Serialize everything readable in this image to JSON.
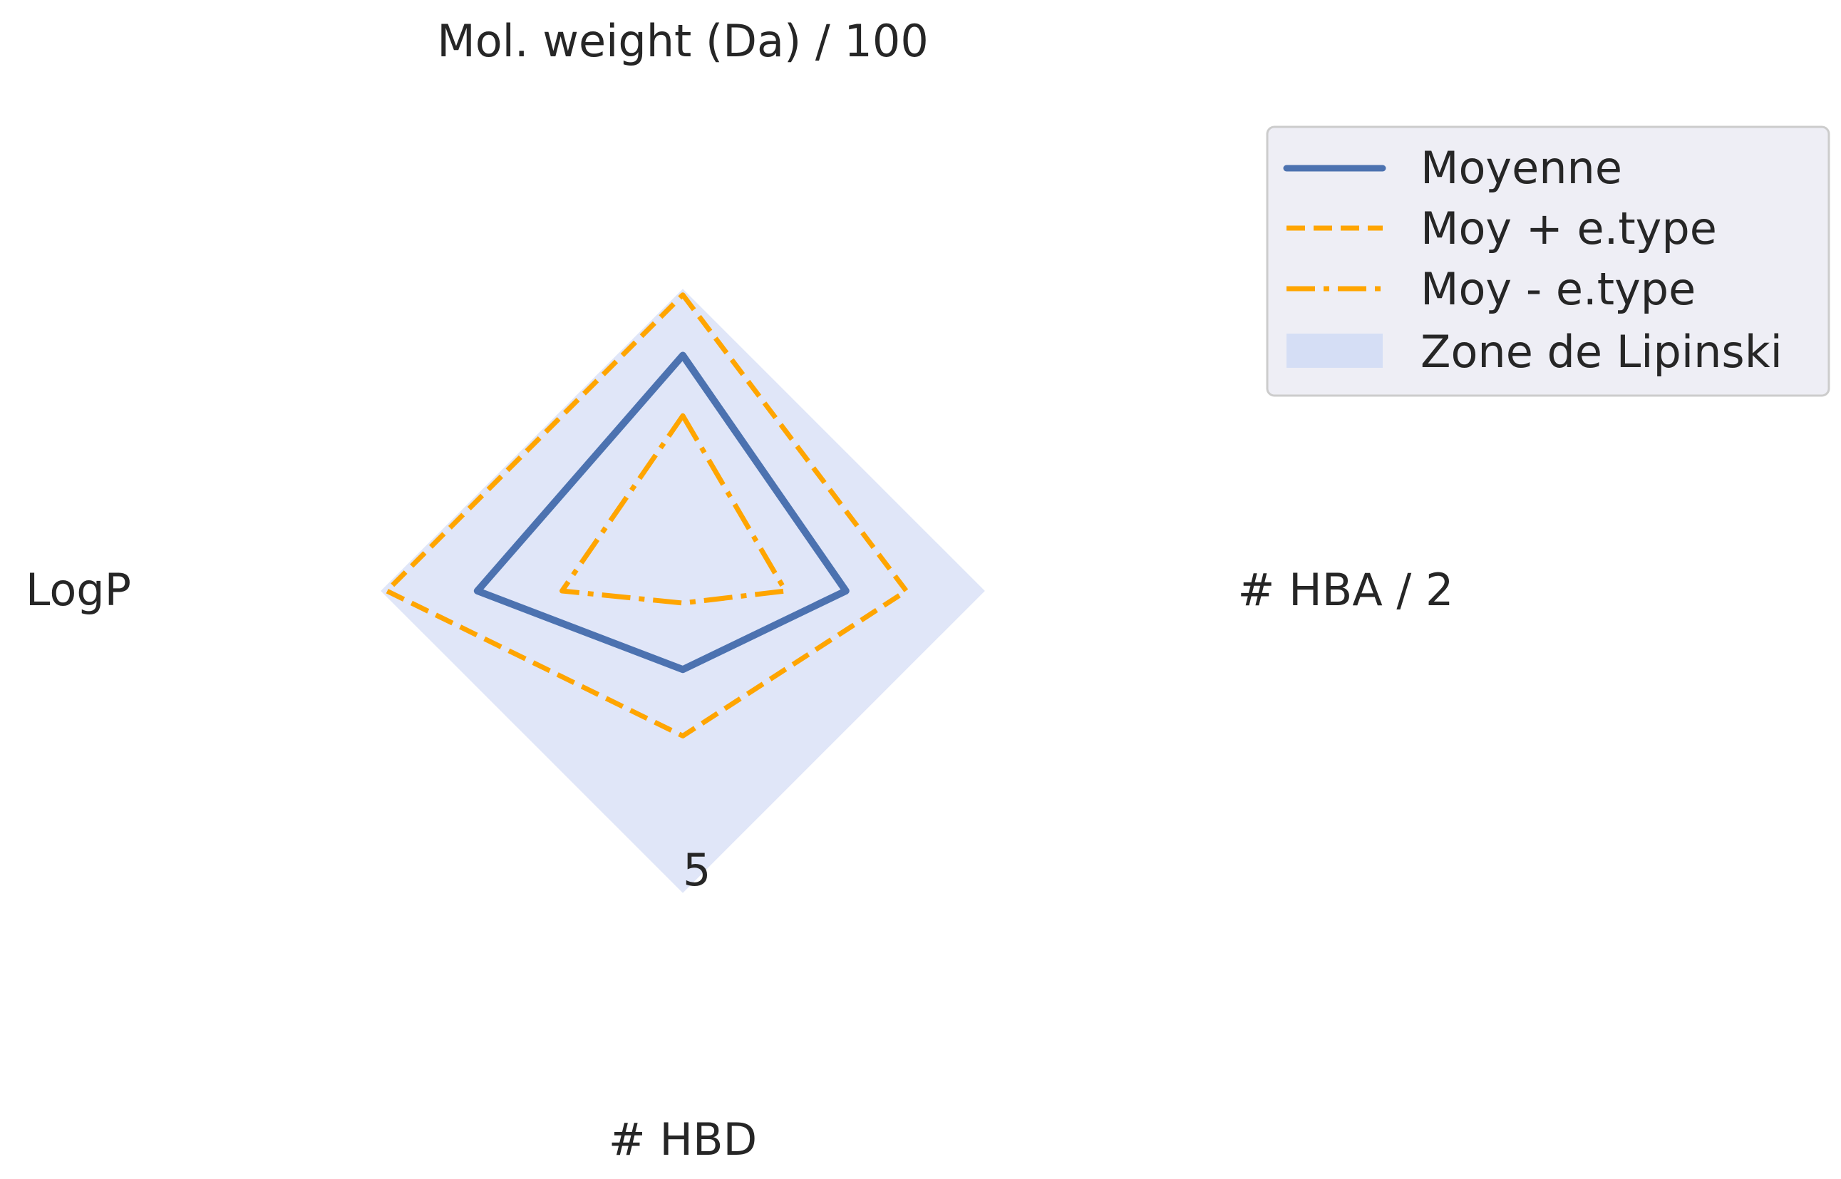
{
  "chart_data": {
    "type": "radar",
    "axes": [
      "Mol. weight (Da) / 100",
      "# HBA / 2",
      "# HBD",
      "LogP"
    ],
    "radial_max": 6.1,
    "radial_ticks": [
      5
    ],
    "radial_tick_labels": [
      "5"
    ],
    "grid": false,
    "legend_position": "top-right",
    "series": [
      {
        "name": "Moyenne",
        "values": [
          3.9,
          2.7,
          1.3,
          3.4
        ],
        "color": "#4c72b0",
        "style": "solid"
      },
      {
        "name": "Moy + e.type",
        "values": [
          4.9,
          3.7,
          2.4,
          4.9
        ],
        "color": "#ffa500",
        "style": "dashed"
      },
      {
        "name": "Moy - e.type",
        "values": [
          2.9,
          1.7,
          0.2,
          2.0
        ],
        "color": "#ffa500",
        "style": "dashdot"
      }
    ],
    "zone": {
      "name": "Zone de Lipinski",
      "values": [
        5,
        5,
        5,
        5
      ],
      "color": "#d5def5"
    }
  }
}
